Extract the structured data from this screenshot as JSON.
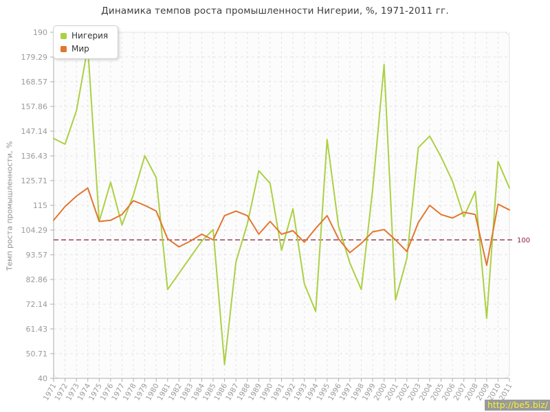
{
  "page": {
    "title": "Динамика темпов роста промышленности Нигерии, %, 1971-2011 гг."
  },
  "legend": {
    "items": [
      {
        "label": "Нигерия",
        "color": "#abd042"
      },
      {
        "label": "Мир",
        "color": "#e2752f"
      }
    ]
  },
  "y_axis": {
    "title": "Темп роста промышленности, %",
    "ticks": [
      "40",
      "50.71",
      "61.43",
      "72.14",
      "82.86",
      "93.57",
      "104.29",
      "115",
      "125.71",
      "136.43",
      "147.14",
      "157.86",
      "168.57",
      "179.29",
      "190"
    ]
  },
  "ref_line": {
    "label": "100",
    "value": 100,
    "color": "#8d2036"
  },
  "watermark": {
    "text": "http://be5.biz/"
  },
  "chart_data": {
    "type": "line",
    "title": "Динамика темпов роста промышленности Нигерии, %, 1971-2011 гг.",
    "xlabel": "",
    "ylabel": "Темп роста промышленности, %",
    "ylim": [
      40,
      190
    ],
    "grid": true,
    "legend_position": "top-left",
    "reference_value": 100,
    "categories": [
      "1971",
      "1972",
      "1973",
      "1974",
      "1975",
      "1976",
      "1977",
      "1978",
      "1979",
      "1980",
      "1981",
      "1982",
      "1983",
      "1984",
      "1985",
      "1986",
      "1987",
      "1988",
      "1989",
      "1990",
      "1991",
      "1992",
      "1993",
      "1994",
      "1995",
      "1996",
      "1997",
      "1998",
      "1999",
      "2000",
      "2001",
      "2002",
      "2003",
      "2004",
      "2005",
      "2006",
      "2007",
      "2008",
      "2009",
      "2010",
      "2011"
    ],
    "series": [
      {
        "name": "Нигерия",
        "color": "#abd042",
        "values": [
          144,
          141.5,
          156,
          183.5,
          108,
          125,
          106.5,
          119.5,
          136.5,
          127,
          78.5,
          85.5,
          92.5,
          99.5,
          104.5,
          46,
          90.5,
          107,
          130,
          124.5,
          95.5,
          113.5,
          81,
          69,
          143.5,
          106,
          90,
          78.5,
          122,
          176,
          74,
          92,
          140,
          145,
          136,
          125.5,
          110,
          121,
          66,
          134,
          122.5
        ]
      },
      {
        "name": "Мир",
        "color": "#e2752f",
        "values": [
          108.5,
          114.5,
          119,
          122.5,
          108,
          108.5,
          111,
          117,
          115,
          112.5,
          100.5,
          97,
          99.5,
          102.5,
          100,
          110.5,
          112.5,
          110.5,
          102.5,
          108,
          102.5,
          104,
          99,
          105,
          110.5,
          100.5,
          94.5,
          98.5,
          103.5,
          104.5,
          100,
          95,
          107.5,
          115,
          111,
          109.5,
          112,
          111,
          89,
          115.5,
          113
        ]
      }
    ]
  }
}
